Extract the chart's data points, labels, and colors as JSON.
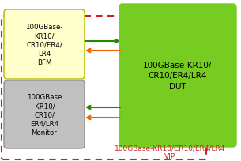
{
  "bfm_text": "100GBase-\nKR10/\nCR10/ER4/\nLR4\nBFM",
  "monitor_text": "100GBase\n-KR10/\nCR10/\nER4/LR4\nMonitor",
  "dut_text": "100GBase-KR10/\nCR10/ER4/LR4\nDUT",
  "vip_label": "100GBase-KR10/CR10/ER4/LR4\nVIP",
  "bfm_box_color": "#ffffcc",
  "bfm_box_edge": "#b8b800",
  "monitor_box_color": "#c0c0c0",
  "monitor_box_edge": "#909090",
  "dut_box_color": "#77cc22",
  "dut_box_edge": "#77cc22",
  "vip_border_color": "#cc2222",
  "arrow_green": "#228800",
  "arrow_orange": "#ee6600",
  "vip_text_color": "#cc2222",
  "bg_color": "#ffffff"
}
